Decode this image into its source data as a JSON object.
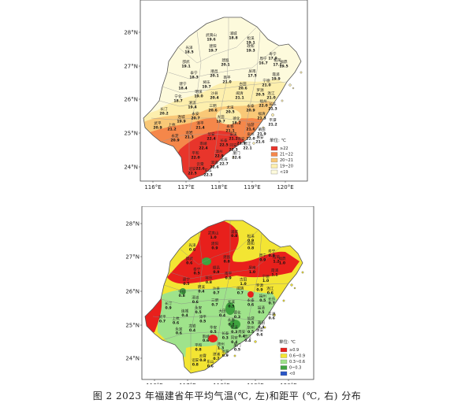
{
  "caption": "图 2   2023 年福建省年平均气温(℃, 左)和距平 (℃, 右) 分布",
  "axes": {
    "lat_ticks": [
      "24°N",
      "25°N",
      "26°N",
      "27°N",
      "28°N"
    ],
    "lon_ticks": [
      "116°E",
      "117°E",
      "118°E",
      "119°E",
      "120°E"
    ]
  },
  "map_top": {
    "legend_title": "单位: ℃",
    "legend": [
      {
        "label": "≥22",
        "color": "#e8352b"
      },
      {
        "label": "21~22",
        "color": "#f5874a"
      },
      {
        "label": "20~21",
        "color": "#f9c877"
      },
      {
        "label": "19~20",
        "color": "#fdefad"
      },
      {
        "label": "<19",
        "color": "#fdfadc"
      }
    ],
    "stations": [
      {
        "name": "浦城",
        "value": "18.8"
      },
      {
        "name": "武夷山",
        "value": "19.6"
      },
      {
        "name": "松溪",
        "value": "19.1"
      },
      {
        "name": "政和",
        "value": "19.3"
      },
      {
        "name": "光泽",
        "value": "18.5"
      },
      {
        "name": "建阳",
        "value": "19.7"
      },
      {
        "name": "寿宁",
        "value": "17.0"
      },
      {
        "name": "福鼎",
        "value": "19.5"
      },
      {
        "name": "邵武",
        "value": "19.1"
      },
      {
        "name": "建瓯",
        "value": "20.1"
      },
      {
        "name": "周宁",
        "value": "16.7"
      },
      {
        "name": "柘荣",
        "value": "17.1"
      },
      {
        "name": "泰宁",
        "value": "18.3"
      },
      {
        "name": "顺昌",
        "value": "20.1"
      },
      {
        "name": "屏南",
        "value": "17.5"
      },
      {
        "name": "霞浦",
        "value": "19.9"
      },
      {
        "name": "建宁",
        "value": "18.4"
      },
      {
        "name": "将乐",
        "value": "19.7"
      },
      {
        "name": "南平",
        "value": "21.0"
      },
      {
        "name": "古田",
        "value": "20.6"
      },
      {
        "name": "宁德",
        "value": "21.0"
      },
      {
        "name": "明溪",
        "value": "19.0"
      },
      {
        "name": "沙县",
        "value": "20.4"
      },
      {
        "name": "闽清",
        "value": "21.1"
      },
      {
        "name": "罗源",
        "value": "20.5"
      },
      {
        "name": "宁化",
        "value": "18.7"
      },
      {
        "name": "清流",
        "value": "19.4"
      },
      {
        "name": "三明",
        "value": "20.6"
      },
      {
        "name": "尤溪",
        "value": "20.5"
      },
      {
        "name": "永泰",
        "value": "20.9"
      },
      {
        "name": "福州",
        "value": "22.0"
      },
      {
        "name": "连江",
        "value": "21.0"
      },
      {
        "name": "长乐",
        "value": "21.3"
      },
      {
        "name": "长汀",
        "value": "20.2"
      },
      {
        "name": "永安",
        "value": "20.7"
      },
      {
        "name": "大田",
        "value": "19.7"
      },
      {
        "name": "德化",
        "value": "18.2"
      },
      {
        "name": "福清",
        "value": "21.3"
      },
      {
        "name": "平潭",
        "value": "21.2"
      },
      {
        "name": "武平",
        "value": "20.9"
      },
      {
        "name": "上杭",
        "value": "21.2"
      },
      {
        "name": "连城",
        "value": "19.9"
      },
      {
        "name": "漳平",
        "value": "21.4"
      },
      {
        "name": "永春",
        "value": "21.1"
      },
      {
        "name": "仙游",
        "value": "21.6"
      },
      {
        "name": "莆田",
        "value": "21.9"
      },
      {
        "name": "龙岩",
        "value": "21.3"
      },
      {
        "name": "安溪",
        "value": "21.2"
      },
      {
        "name": "南安",
        "value": "21.9"
      },
      {
        "name": "泉州",
        "value": "22.0"
      },
      {
        "name": "惠安",
        "value": "21.6"
      },
      {
        "name": "永定",
        "value": "20.9"
      },
      {
        "name": "华安",
        "value": "22.4"
      },
      {
        "name": "长泰",
        "value": "22.5"
      },
      {
        "name": "同安",
        "value": "22.3"
      },
      {
        "name": "厦门",
        "value": "22.6"
      },
      {
        "name": "晋江",
        "value": "22.1"
      },
      {
        "name": "南靖",
        "value": "22.4"
      },
      {
        "name": "平和",
        "value": "22.0"
      },
      {
        "name": "漳州",
        "value": "22.9"
      },
      {
        "name": "龙海",
        "value": "22.7"
      },
      {
        "name": "漳浦",
        "value": "22.6"
      },
      {
        "name": "云霄",
        "value": "22.6"
      },
      {
        "name": "诏安",
        "value": "22.5"
      },
      {
        "name": "东山",
        "value": "22.3"
      }
    ]
  },
  "map_bottom": {
    "legend_title": "单位: ℃",
    "legend": [
      {
        "label": "≥0.9",
        "color": "#e8201c"
      },
      {
        "label": "0.6~0.9",
        "color": "#f3e533"
      },
      {
        "label": "0.3~0.6",
        "color": "#9fe38b"
      },
      {
        "label": "0~0.3",
        "color": "#3fa33f"
      },
      {
        "label": "<0",
        "color": "#2a56c6"
      }
    ],
    "stations": [
      {
        "name": "浦城",
        "value": "0.8"
      },
      {
        "name": "武夷山",
        "value": "1.0"
      },
      {
        "name": "松溪",
        "value": "0.9"
      },
      {
        "name": "政和",
        "value": "0.8"
      },
      {
        "name": "光泽",
        "value": "0.6"
      },
      {
        "name": "建阳",
        "value": "0.9"
      },
      {
        "name": "寿宁",
        "value": "0.8"
      },
      {
        "name": "福鼎",
        "value": "1.0"
      },
      {
        "name": "邵武",
        "value": "0.6"
      },
      {
        "name": "建瓯",
        "value": "0.8"
      },
      {
        "name": "周宁",
        "value": "0.9"
      },
      {
        "name": "柘荣",
        "value": "1.2"
      },
      {
        "name": "泰宁",
        "value": "0.5"
      },
      {
        "name": "顺昌",
        "value": "0.9"
      },
      {
        "name": "屏南",
        "value": "1.0"
      },
      {
        "name": "霞浦",
        "value": "1.1"
      },
      {
        "name": "建宁",
        "value": "0.5"
      },
      {
        "name": "将乐",
        "value": "0.8"
      },
      {
        "name": "南平",
        "value": "0.9"
      },
      {
        "name": "古田",
        "value": "1.0"
      },
      {
        "name": "宁德",
        "value": "1.0"
      },
      {
        "name": "明溪",
        "value": "0.4"
      },
      {
        "name": "沙县",
        "value": "0.7"
      },
      {
        "name": "闽清",
        "value": "0.7"
      },
      {
        "name": "罗源",
        "value": "0.9"
      },
      {
        "name": "宁化",
        "value": "0.8"
      },
      {
        "name": "清流",
        "value": "0.6"
      },
      {
        "name": "三明",
        "value": "0.7"
      },
      {
        "name": "尤溪",
        "value": "0.5"
      },
      {
        "name": "永泰",
        "value": "0.6"
      },
      {
        "name": "福州",
        "value": "0.5"
      },
      {
        "name": "连江",
        "value": "0.6"
      },
      {
        "name": "长乐",
        "value": "0.7"
      },
      {
        "name": "长汀",
        "value": "0.9"
      },
      {
        "name": "永安",
        "value": "0.5"
      },
      {
        "name": "大田",
        "value": "0.4"
      },
      {
        "name": "德化",
        "value": "0.3"
      },
      {
        "name": "福清",
        "value": "0.5"
      },
      {
        "name": "平潭",
        "value": "0.6"
      },
      {
        "name": "武平",
        "value": "0.7"
      },
      {
        "name": "上杭",
        "value": "0.6"
      },
      {
        "name": "连城",
        "value": "0.4"
      },
      {
        "name": "漳平",
        "value": "0.5"
      },
      {
        "name": "永春",
        "value": "0.2"
      },
      {
        "name": "仙游",
        "value": "0.5"
      },
      {
        "name": "莆田",
        "value": "0.4"
      },
      {
        "name": "龙岩",
        "value": "0.4"
      },
      {
        "name": "安溪",
        "value": "0.3"
      },
      {
        "name": "南安",
        "value": "0.4"
      },
      {
        "name": "泉州",
        "value": "0.5"
      },
      {
        "name": "惠安",
        "value": "0.6"
      },
      {
        "name": "永定",
        "value": "0.6"
      },
      {
        "name": "华安",
        "value": "0.5"
      },
      {
        "name": "长泰",
        "value": "0.3"
      },
      {
        "name": "同安",
        "value": "0.4"
      },
      {
        "name": "厦门",
        "value": "0.5"
      },
      {
        "name": "晋江",
        "value": "0.4"
      },
      {
        "name": "南靖",
        "value": "0.6"
      },
      {
        "name": "平和",
        "value": "0.8"
      },
      {
        "name": "漳州",
        "value": "1.3"
      },
      {
        "name": "龙海",
        "value": "0.9"
      },
      {
        "name": "漳浦",
        "value": "0.7"
      },
      {
        "name": "云霄",
        "value": "0.8"
      },
      {
        "name": "诏安",
        "value": "0.8"
      },
      {
        "name": "东山",
        "value": "0.6"
      }
    ]
  }
}
